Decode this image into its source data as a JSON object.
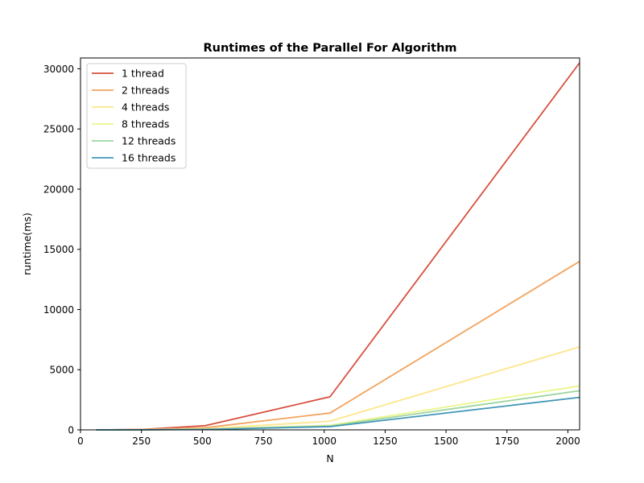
{
  "chart_data": {
    "type": "line",
    "title": "Runtimes of the Parallel For Algorithm",
    "xlabel": "N",
    "ylabel": "runtime(ms)",
    "xlim": [
      0,
      2048
    ],
    "ylim": [
      0,
      30900
    ],
    "xticks": [
      0,
      250,
      500,
      750,
      1000,
      1250,
      1500,
      1750,
      2000
    ],
    "yticks": [
      0,
      5000,
      10000,
      15000,
      20000,
      25000,
      30000
    ],
    "legend_position": "top-left",
    "grid": false,
    "x": [
      64,
      128,
      256,
      512,
      1024,
      2048
    ],
    "series": [
      {
        "name": "1 thread",
        "color": "#d7503f",
        "values": [
          2,
          8,
          40,
          350,
          2750,
          30500
        ]
      },
      {
        "name": "2 threads",
        "color": "#f3a35e",
        "values": [
          1,
          5,
          25,
          180,
          1400,
          14000
        ]
      },
      {
        "name": "4 threads",
        "color": "#fde68a",
        "values": [
          1,
          3,
          15,
          90,
          720,
          6900
        ]
      },
      {
        "name": "8 threads",
        "color": "#eaf68c",
        "values": [
          1,
          2,
          10,
          55,
          380,
          3650
        ]
      },
      {
        "name": "12 threads",
        "color": "#9dd4a0",
        "values": [
          1,
          2,
          8,
          45,
          320,
          3250
        ]
      },
      {
        "name": "16 threads",
        "color": "#4397b8",
        "values": [
          1,
          2,
          7,
          35,
          270,
          2700
        ]
      }
    ]
  }
}
